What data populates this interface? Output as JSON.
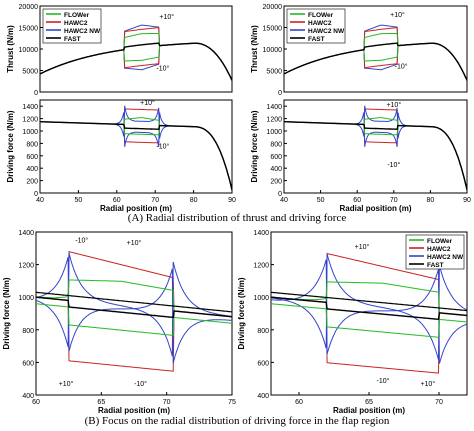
{
  "captions": {
    "a": "(A) Radial distribution of thrust and driving force",
    "b": "(B) Focus on the radial distribution of driving force in the flap region"
  },
  "legend": {
    "entries": [
      {
        "name": "FLOWer",
        "color": "#22bb22"
      },
      {
        "name": "HAWC2",
        "color": "#cc2222"
      },
      {
        "name": "HAWC2 NW",
        "color": "#3344cc"
      },
      {
        "name": "FAST",
        "color": "#000000"
      }
    ]
  },
  "chart_data": [
    {
      "id": "a-left-thrust",
      "type": "line",
      "ylabel": "Thrust (N/m)",
      "xlabel": "",
      "xlim": [
        40,
        90
      ],
      "ylim": [
        0,
        20000
      ],
      "xticks": [],
      "yticks": [
        0,
        5000,
        10000,
        15000,
        20000
      ],
      "legend_placement": "top-left",
      "flap": [
        62,
        71
      ],
      "annotations": [
        {
          "text": "+10°",
          "x": 73,
          "y": 17000
        },
        {
          "text": "-10°",
          "x": 72,
          "y": 5000
        }
      ]
    },
    {
      "id": "a-left-driving",
      "type": "line",
      "ylabel": "Driving force (N/m)",
      "xlabel": "Radial position (m)",
      "xlim": [
        40,
        90
      ],
      "ylim": [
        0,
        1500
      ],
      "xticks": [
        40,
        50,
        60,
        70,
        80,
        90
      ],
      "yticks": [
        0,
        200,
        400,
        600,
        800,
        1000,
        1200,
        1400
      ],
      "flap": [
        62,
        71
      ],
      "annotations": [
        {
          "text": "+10°",
          "x": 68,
          "y": 1420
        },
        {
          "text": "-10°",
          "x": 72,
          "y": 720
        }
      ]
    },
    {
      "id": "a-right-thrust",
      "type": "line",
      "ylabel": "Thrust (N/m)",
      "xlabel": "",
      "xlim": [
        40,
        90
      ],
      "ylim": [
        0,
        20000
      ],
      "xticks": [],
      "yticks": [
        0,
        5000,
        10000,
        15000,
        20000
      ],
      "legend_placement": "top-left",
      "flap": [
        62,
        71
      ],
      "annotations": [
        {
          "text": "+10°",
          "x": 71,
          "y": 17500
        },
        {
          "text": "-10°",
          "x": 72,
          "y": 5500
        }
      ]
    },
    {
      "id": "a-right-driving",
      "type": "line",
      "ylabel": "Driving force (N/m)",
      "xlabel": "Radial position (m)",
      "xlim": [
        40,
        90
      ],
      "ylim": [
        0,
        1500
      ],
      "xticks": [
        40,
        50,
        60,
        70,
        80,
        90
      ],
      "yticks": [
        0,
        200,
        400,
        600,
        800,
        1000,
        1200,
        1400
      ],
      "flap": [
        62,
        71
      ],
      "annotations": [
        {
          "text": "+10°",
          "x": 70,
          "y": 1390
        },
        {
          "text": "-10°",
          "x": 70,
          "y": 420
        }
      ]
    },
    {
      "id": "b-left",
      "type": "line",
      "ylabel": "Driving force (N/m)",
      "xlabel": "Radial position (m)",
      "xlim": [
        60,
        75
      ],
      "ylim": [
        400,
        1400
      ],
      "xticks": [
        60,
        65,
        70,
        75
      ],
      "yticks": [
        400,
        600,
        800,
        1000,
        1200,
        1400
      ],
      "flap": [
        62.5,
        70.5
      ],
      "annotations": [
        {
          "text": "-10°",
          "x": 63.5,
          "y": 1335
        },
        {
          "text": "+10°",
          "x": 67.5,
          "y": 1320
        },
        {
          "text": "+10°",
          "x": 62.3,
          "y": 455
        },
        {
          "text": "-10°",
          "x": 68.0,
          "y": 455
        }
      ]
    },
    {
      "id": "b-right",
      "type": "line",
      "ylabel": "Driving force (N/m)",
      "xlabel": "Radial position (m)",
      "xlim": [
        58,
        72
      ],
      "ylim": [
        400,
        1400
      ],
      "xticks": [
        60,
        65,
        70
      ],
      "yticks": [
        400,
        600,
        800,
        1000,
        1200,
        1400
      ],
      "legend_placement": "top-right",
      "flap": [
        62,
        70
      ],
      "annotations": [
        {
          "text": "+10°",
          "x": 64.5,
          "y": 1295
        },
        {
          "text": "-10°",
          "x": 69.2,
          "y": 1270
        },
        {
          "text": "-10°",
          "x": 66.0,
          "y": 475
        },
        {
          "text": "+10°",
          "x": 69.2,
          "y": 455
        }
      ]
    }
  ]
}
